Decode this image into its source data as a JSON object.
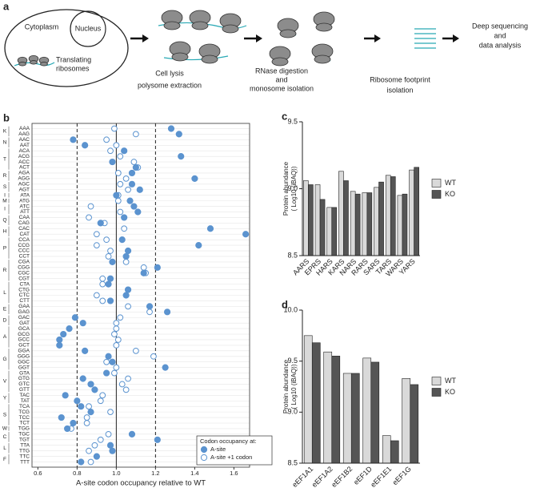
{
  "panel_labels": [
    "a",
    "b",
    "c",
    "d"
  ],
  "diagram": {
    "cytoplasm": "Cytoplasm",
    "nucleus": "Nucleus",
    "translating": [
      "Translating",
      "ribosomes"
    ],
    "steps": [
      [
        "Cell lysis",
        "polysome extraction"
      ],
      [
        "RNase digestion",
        "and",
        "monosome isolation"
      ],
      [
        "Ribosome footprint",
        "isolation"
      ],
      [
        "Deep sequencing",
        "and",
        "data analysis"
      ]
    ]
  },
  "chart_data": [
    {
      "type": "dot",
      "categories": [
        "AAA",
        "AAG",
        "AAC",
        "AAT",
        "ACA",
        "ACG",
        "ACC",
        "ACT",
        "AGA",
        "AGG",
        "AGC",
        "AGT",
        "ATA",
        "ATG",
        "ATC",
        "ATT",
        "CAA",
        "CAG",
        "CAC",
        "CAT",
        "CCA",
        "CCG",
        "CCC",
        "CCT",
        "CGA",
        "CGG",
        "CGC",
        "CGT",
        "CTA",
        "CTG",
        "CTC",
        "CTT",
        "GAA",
        "GAG",
        "GAC",
        "GAT",
        "GCA",
        "GCG",
        "GCC",
        "GCT",
        "GGA",
        "GGG",
        "GGC",
        "GGT",
        "GTA",
        "GTG",
        "GTC",
        "GTT",
        "TAC",
        "TAT",
        "TCA",
        "TCG",
        "TCC",
        "TCT",
        "TGG",
        "TGC",
        "TGT",
        "TTA",
        "TTG",
        "TTC",
        "TTT"
      ],
      "groups": [
        "K",
        "K",
        "N",
        "N",
        "T",
        "T",
        "T",
        "T",
        "R",
        "R",
        "S",
        "S",
        "I",
        "M",
        "I",
        "I",
        "Q",
        "Q",
        "H",
        "H",
        "P",
        "P",
        "P",
        "P",
        "R",
        "R",
        "R",
        "R",
        "L",
        "L",
        "L",
        "L",
        "E",
        "E",
        "D",
        "D",
        "A",
        "A",
        "A",
        "A",
        "G",
        "G",
        "G",
        "G",
        "V",
        "V",
        "V",
        "V",
        "Y",
        "Y",
        "S",
        "S",
        "S",
        "S",
        "W",
        "C",
        "C",
        "L",
        "L",
        "F",
        "F"
      ],
      "series": [
        {
          "name": "A-site",
          "color": "#5b93cf",
          "filled": true,
          "values": [
            1.28,
            1.32,
            0.78,
            0.84,
            1.04,
            1.33,
            0.98,
            1.1,
            1.08,
            1.4,
            1.08,
            1.12,
            1.0,
            1.07,
            1.09,
            1.11,
            1.04,
            0.92,
            1.48,
            1.66,
            1.03,
            1.42,
            1.06,
            1.05,
            0.98,
            1.21,
            1.14,
            0.97,
            0.96,
            1.06,
            1.05,
            0.97,
            1.17,
            1.26,
            0.79,
            0.83,
            0.76,
            0.73,
            0.71,
            0.71,
            0.84,
            0.96,
            0.98,
            1.25,
            0.95,
            0.83,
            0.87,
            0.89,
            0.74,
            0.8,
            0.82,
            0.87,
            0.72,
            0.78,
            0.75,
            1.08,
            1.21,
            0.97,
            0.98,
            0.9,
            0.82
          ]
        },
        {
          "name": "A-site +1 codon",
          "color": "#5b93cf",
          "filled": false,
          "values": [
            0.99,
            1.1,
            0.95,
            1.0,
            0.97,
            1.02,
            1.09,
            1.11,
            1.01,
            1.05,
            1.02,
            1.06,
            1.01,
            1.01,
            0.87,
            1.02,
            0.86,
            0.94,
            1.04,
            0.9,
            0.95,
            0.9,
            0.97,
            0.96,
            1.05,
            1.14,
            1.15,
            0.93,
            0.93,
            1.06,
            0.9,
            0.93,
            1.06,
            1.17,
            1.02,
            1.0,
            1.0,
            0.99,
            1.01,
            1.0,
            1.1,
            1.19,
            0.95,
            1.0,
            0.99,
            1.06,
            1.03,
            1.05,
            0.93,
            0.92,
            0.86,
            0.97,
            0.85,
            0.85,
            0.77,
            0.96,
            0.92,
            0.89,
            0.86,
            0.9,
            0.87
          ]
        }
      ],
      "xlim": [
        0.57,
        1.68
      ],
      "xticks": [
        0.6,
        0.8,
        {
          "value": 1,
          "label": "1.0"
        },
        1.2,
        1.4,
        1.6
      ],
      "reference_lines": [
        {
          "value": 0.8,
          "style": "dashed"
        },
        {
          "value": 1,
          "style": "solid"
        },
        {
          "value": 1.2,
          "style": "dashed"
        }
      ],
      "xlabel": "A-site codon occupancy relative to WT",
      "legend_title": "Codon occupancy at:",
      "legend": "lower right",
      "grid": true
    },
    {
      "type": "bar",
      "categories": [
        "AARS",
        "EPRS",
        "HARS",
        "KARS",
        "NARS",
        "RARS",
        "SARS",
        "TARS",
        "WARS",
        "YARS"
      ],
      "series": [
        {
          "name": "WT",
          "color": "#d9d9d9",
          "values": [
            9.06,
            9.03,
            8.86,
            9.13,
            8.98,
            8.97,
            9.01,
            9.1,
            8.95,
            9.14
          ]
        },
        {
          "name": "KO",
          "color": "#555555",
          "values": [
            9.03,
            8.92,
            8.86,
            9.06,
            8.96,
            8.97,
            9.05,
            9.09,
            8.96,
            9.16
          ]
        }
      ],
      "ylim": [
        8.5,
        9.5
      ],
      "yticks": [
        8.5,
        {
          "value": 9,
          "label": "9.0"
        },
        9.5
      ],
      "ylabel": [
        "Protein abundance",
        "( Log10 (iBAQ))"
      ],
      "legend": "right"
    },
    {
      "type": "bar",
      "categories": [
        "eEF1A1",
        "eEF1A2",
        "eEF1B2",
        "eEF1D",
        "eEF1E1",
        "eEF1G"
      ],
      "series": [
        {
          "name": "WT",
          "color": "#d9d9d9",
          "values": [
            9.75,
            9.59,
            9.38,
            9.53,
            8.77,
            9.33
          ]
        },
        {
          "name": "KO",
          "color": "#555555",
          "values": [
            9.68,
            9.55,
            9.38,
            9.49,
            8.72,
            9.27
          ]
        }
      ],
      "ylim": [
        8.5,
        10
      ],
      "yticks": [
        8.5,
        {
          "value": 9,
          "label": "9.0"
        },
        9.5,
        {
          "value": 10,
          "label": "10.0"
        }
      ],
      "ylabel": [
        "Protein abundance",
        "( Log10 (iBAQ))"
      ],
      "legend": "right"
    }
  ]
}
